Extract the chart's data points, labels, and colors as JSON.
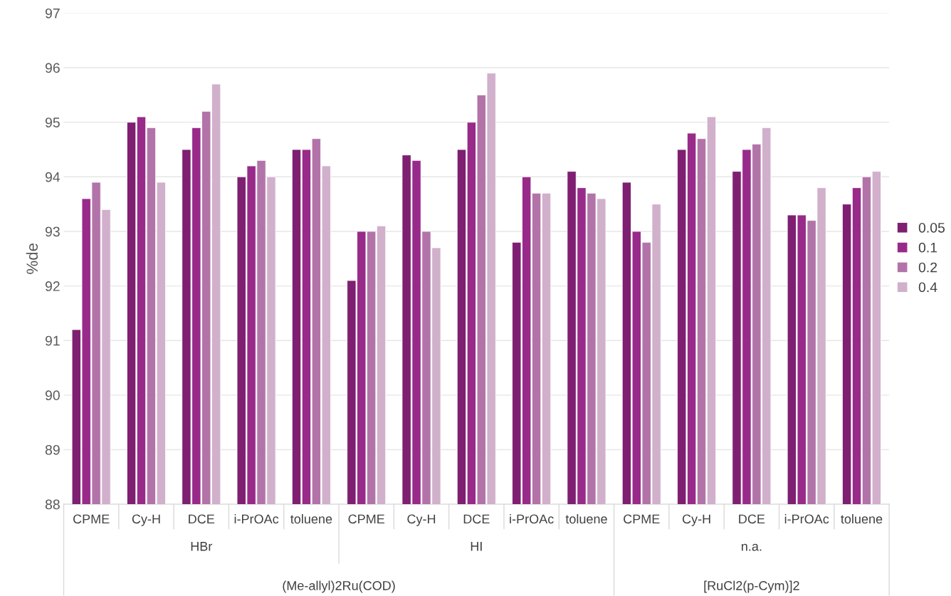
{
  "chart_data": {
    "type": "bar",
    "ylabel": "%de",
    "categories": [
      "CPME",
      "Cy-H",
      "DCE",
      "i-PrOAc",
      "toluene",
      "CPME",
      "Cy-H",
      "DCE",
      "i-PrOAc",
      "toluene",
      "CPME",
      "Cy-H",
      "DCE",
      "i-PrOAc",
      "toluene"
    ],
    "annotations": [
      "HBr",
      "HI",
      "n.a.",
      "(Me-allyl)2Ru(COD)",
      "[RuCl2(p-Cym)]2"
    ],
    "series": [
      {
        "name": "0.05",
        "color": "#7e1f71",
        "values": [
          91.2,
          95.0,
          94.5,
          94.0,
          94.5,
          92.1,
          94.4,
          94.5,
          92.8,
          94.1,
          93.9,
          94.5,
          94.1,
          93.3,
          93.5
        ]
      },
      {
        "name": "0.1",
        "color": "#982a8a",
        "values": [
          93.6,
          95.1,
          94.9,
          94.2,
          94.5,
          93.0,
          94.3,
          95.0,
          94.0,
          93.8,
          93.0,
          94.8,
          94.5,
          93.3,
          93.8
        ]
      },
      {
        "name": "0.2",
        "color": "#b274a8",
        "values": [
          93.9,
          94.9,
          95.2,
          94.3,
          94.7,
          93.0,
          93.0,
          95.5,
          93.7,
          93.7,
          92.8,
          94.7,
          94.6,
          93.2,
          94.0
        ]
      },
      {
        "name": "0.4",
        "color": "#d1b0cb",
        "values": [
          93.4,
          93.9,
          95.7,
          94.0,
          94.2,
          93.1,
          92.7,
          95.9,
          93.7,
          93.6,
          93.5,
          95.1,
          94.9,
          93.8,
          94.1
        ]
      }
    ],
    "ylim": [
      88,
      97
    ],
    "yticks": [
      88,
      89,
      90,
      91,
      92,
      93,
      94,
      95,
      96,
      97
    ],
    "grid": "y",
    "legend": "right"
  }
}
